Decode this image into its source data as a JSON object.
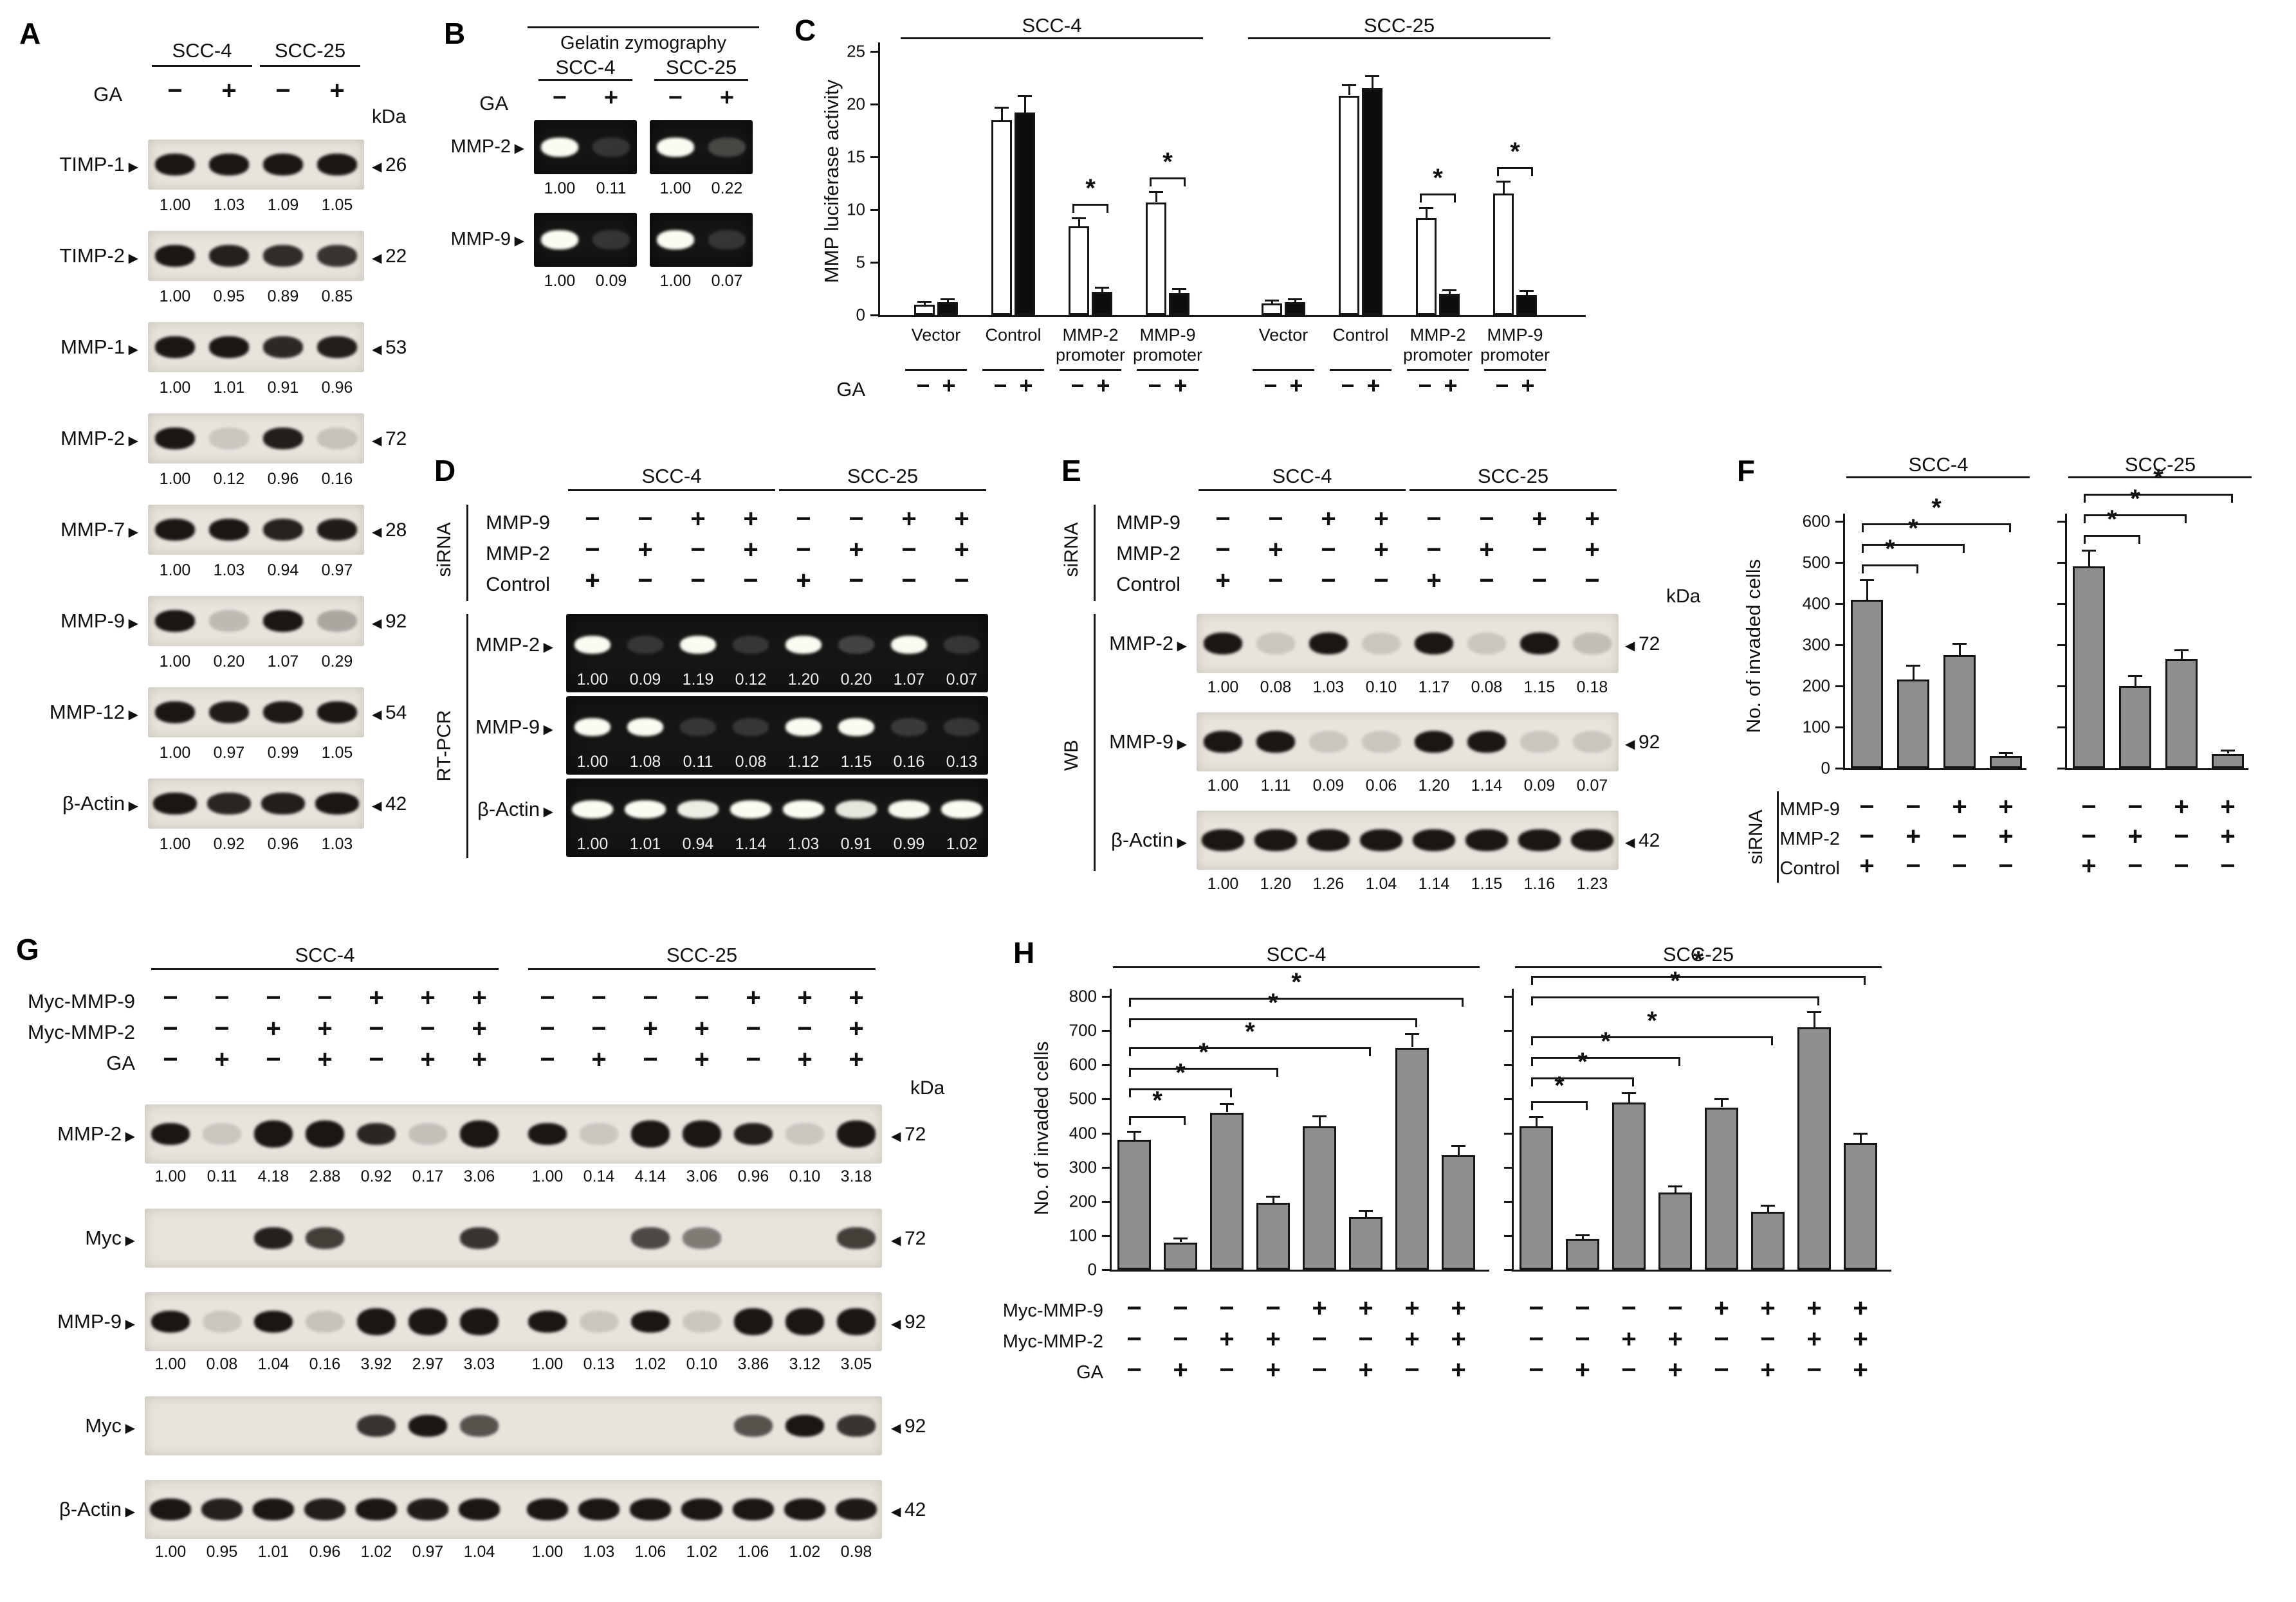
{
  "panel_A": {
    "letter": "A",
    "cell_lines": [
      "SCC-4",
      "SCC-25"
    ],
    "ga_label": "GA",
    "ga_signs": [
      "−",
      "+",
      "−",
      "+"
    ],
    "kda_label": "kDa",
    "rows": [
      {
        "protein": "TIMP-1",
        "kda": "26",
        "values": [
          "1.00",
          "1.03",
          "1.09",
          "1.05"
        ]
      },
      {
        "protein": "TIMP-2",
        "kda": "22",
        "values": [
          "1.00",
          "0.95",
          "0.89",
          "0.85"
        ]
      },
      {
        "protein": "MMP-1",
        "kda": "53",
        "values": [
          "1.00",
          "1.01",
          "0.91",
          "0.96"
        ]
      },
      {
        "protein": "MMP-2",
        "kda": "72",
        "values": [
          "1.00",
          "0.12",
          "0.96",
          "0.16"
        ]
      },
      {
        "protein": "MMP-7",
        "kda": "28",
        "values": [
          "1.00",
          "1.03",
          "0.94",
          "0.97"
        ]
      },
      {
        "protein": "MMP-9",
        "kda": "92",
        "values": [
          "1.00",
          "0.20",
          "1.07",
          "0.29"
        ]
      },
      {
        "protein": "MMP-12",
        "kda": "54",
        "values": [
          "1.00",
          "0.97",
          "0.99",
          "1.05"
        ]
      },
      {
        "protein": "β-Actin",
        "kda": "42",
        "values": [
          "1.00",
          "0.92",
          "0.96",
          "1.03"
        ]
      }
    ]
  },
  "panel_B": {
    "letter": "B",
    "title": "Gelatin zymography",
    "cell_lines": [
      "SCC-4",
      "SCC-25"
    ],
    "ga_label": "GA",
    "ga_signs": [
      "−",
      "+",
      "−",
      "+"
    ],
    "rows": [
      {
        "protein": "MMP-2",
        "values": [
          "1.00",
          "0.11",
          "1.00",
          "0.22"
        ]
      },
      {
        "protein": "MMP-9",
        "values": [
          "1.00",
          "0.09",
          "1.00",
          "0.07"
        ]
      }
    ]
  },
  "panel_C": {
    "letter": "C"
  },
  "panel_D": {
    "letter": "D",
    "sirna_label": "siRNA",
    "method_label": "RT-PCR",
    "cell_lines": [
      "SCC-4",
      "SCC-25"
    ],
    "sign_rows": [
      {
        "label": "MMP-9",
        "signs": [
          "−",
          "−",
          "+",
          "+",
          "−",
          "−",
          "+",
          "+"
        ]
      },
      {
        "label": "MMP-2",
        "signs": [
          "−",
          "+",
          "−",
          "+",
          "−",
          "+",
          "−",
          "+"
        ]
      },
      {
        "label": "Control",
        "signs": [
          "+",
          "−",
          "−",
          "−",
          "+",
          "−",
          "−",
          "−"
        ]
      }
    ],
    "rows": [
      {
        "protein": "MMP-2",
        "values": [
          "1.00",
          "0.09",
          "1.19",
          "0.12",
          "1.20",
          "0.20",
          "1.07",
          "0.07"
        ]
      },
      {
        "protein": "MMP-9",
        "values": [
          "1.00",
          "1.08",
          "0.11",
          "0.08",
          "1.12",
          "1.15",
          "0.16",
          "0.13"
        ]
      },
      {
        "protein": "β-Actin",
        "values": [
          "1.00",
          "1.01",
          "0.94",
          "1.14",
          "1.03",
          "0.91",
          "0.99",
          "1.02"
        ]
      }
    ]
  },
  "panel_E": {
    "letter": "E",
    "sirna_label": "siRNA",
    "method_label": "WB",
    "kda_label": "kDa",
    "cell_lines": [
      "SCC-4",
      "SCC-25"
    ],
    "sign_rows": [
      {
        "label": "MMP-9",
        "signs": [
          "−",
          "−",
          "+",
          "+",
          "−",
          "−",
          "+",
          "+"
        ]
      },
      {
        "label": "MMP-2",
        "signs": [
          "−",
          "+",
          "−",
          "+",
          "−",
          "+",
          "−",
          "+"
        ]
      },
      {
        "label": "Control",
        "signs": [
          "+",
          "−",
          "−",
          "−",
          "+",
          "−",
          "−",
          "−"
        ]
      }
    ],
    "rows": [
      {
        "protein": "MMP-2",
        "kda": "72",
        "values": [
          "1.00",
          "0.08",
          "1.03",
          "0.10",
          "1.17",
          "0.08",
          "1.15",
          "0.18"
        ]
      },
      {
        "protein": "MMP-9",
        "kda": "92",
        "values": [
          "1.00",
          "1.11",
          "0.09",
          "0.06",
          "1.20",
          "1.14",
          "0.09",
          "0.07"
        ]
      },
      {
        "protein": "β-Actin",
        "kda": "42",
        "values": [
          "1.00",
          "1.20",
          "1.26",
          "1.04",
          "1.14",
          "1.15",
          "1.16",
          "1.23"
        ]
      }
    ]
  },
  "panel_F": {
    "letter": "F"
  },
  "panel_G": {
    "letter": "G",
    "kda_label": "kDa",
    "cell_lines": [
      "SCC-4",
      "SCC-25"
    ],
    "sign_rows": [
      {
        "label": "Myc-MMP-9",
        "signs": [
          "−",
          "−",
          "−",
          "−",
          "+",
          "+",
          "+",
          "−",
          "−",
          "−",
          "−",
          "+",
          "+",
          "+"
        ]
      },
      {
        "label": "Myc-MMP-2",
        "signs": [
          "−",
          "−",
          "+",
          "+",
          "−",
          "−",
          "+",
          "−",
          "−",
          "+",
          "+",
          "−",
          "−",
          "+"
        ]
      },
      {
        "label": "GA",
        "signs": [
          "−",
          "+",
          "−",
          "+",
          "−",
          "+",
          "+",
          "−",
          "+",
          "−",
          "+",
          "−",
          "+",
          "+"
        ]
      }
    ],
    "rows": [
      {
        "protein": "MMP-2",
        "kda": "72",
        "values": [
          "1.00",
          "0.11",
          "4.18",
          "2.88",
          "0.92",
          "0.17",
          "3.06",
          "1.00",
          "0.14",
          "4.14",
          "3.06",
          "0.96",
          "0.10",
          "3.18"
        ]
      },
      {
        "protein": "Myc",
        "kda": "72",
        "band_intensities": [
          0,
          0,
          0.95,
          0.8,
          0,
          0,
          0.85,
          0,
          0,
          0.75,
          0.5,
          0,
          0,
          0.8
        ]
      },
      {
        "protein": "MMP-9",
        "kda": "92",
        "values": [
          "1.00",
          "0.08",
          "1.04",
          "0.16",
          "3.92",
          "2.97",
          "3.03",
          "1.00",
          "0.13",
          "1.02",
          "0.10",
          "3.86",
          "3.12",
          "3.05"
        ]
      },
      {
        "protein": "Myc",
        "kda": "92",
        "band_intensities": [
          0,
          0,
          0,
          0,
          0.85,
          1,
          0.7,
          0,
          0,
          0,
          0,
          0.7,
          1,
          0.85
        ]
      },
      {
        "protein": "β-Actin",
        "kda": "42",
        "values": [
          "1.00",
          "0.95",
          "1.01",
          "0.96",
          "1.02",
          "0.97",
          "1.04",
          "1.00",
          "1.03",
          "1.06",
          "1.02",
          "1.06",
          "1.02",
          "0.98"
        ]
      }
    ]
  },
  "panel_H": {
    "letter": "H"
  },
  "chart_data": [
    {
      "id": "C",
      "type": "bar",
      "ylabel": "MMP luciferase activity",
      "ylim": [
        0,
        25
      ],
      "yticks": [
        0,
        5,
        10,
        15,
        20,
        25
      ],
      "ga_label": "GA",
      "ga_signs": [
        "−",
        "+"
      ],
      "groups": [
        {
          "name": "SCC-4",
          "categories": [
            "Vector",
            "Control",
            "MMP-2\npromoter",
            "MMP-9\npromoter"
          ],
          "series": [
            {
              "name": "GA−",
              "fill": "#ffffff",
              "values": [
                1.0,
                18.5,
                8.4,
                10.7
              ],
              "errors": [
                0.3,
                1.2,
                0.8,
                1.0
              ]
            },
            {
              "name": "GA+",
              "fill": "#0d0d0d",
              "values": [
                1.2,
                19.2,
                2.2,
                2.1
              ],
              "errors": [
                0.3,
                1.6,
                0.4,
                0.4
              ]
            }
          ],
          "significant_categories": [
            2,
            3
          ]
        },
        {
          "name": "SCC-25",
          "categories": [
            "Vector",
            "Control",
            "MMP-2\npromoter",
            "MMP-9\npromoter"
          ],
          "series": [
            {
              "name": "GA−",
              "fill": "#ffffff",
              "values": [
                1.1,
                20.8,
                9.2,
                11.5
              ],
              "errors": [
                0.3,
                1.0,
                1.0,
                1.2
              ]
            },
            {
              "name": "GA+",
              "fill": "#0d0d0d",
              "values": [
                1.2,
                21.5,
                2.0,
                1.9
              ],
              "errors": [
                0.3,
                1.2,
                0.4,
                0.4
              ]
            }
          ],
          "significant_categories": [
            2,
            3
          ]
        }
      ]
    },
    {
      "id": "F",
      "type": "bar",
      "ylabel": "No. of invaded cells",
      "ylim": [
        0,
        600
      ],
      "yticks": [
        0,
        100,
        200,
        300,
        400,
        500,
        600
      ],
      "bar_fill": "#8f8f8f",
      "sirna_label": "siRNA",
      "groups": [
        {
          "name": "SCC-4",
          "values": [
            410,
            215,
            275,
            30
          ],
          "errors": [
            48,
            35,
            28,
            8
          ],
          "brackets": [
            [
              0,
              1
            ],
            [
              0,
              2
            ],
            [
              0,
              3
            ]
          ]
        },
        {
          "name": "SCC-25",
          "values": [
            490,
            200,
            265,
            35
          ],
          "errors": [
            40,
            25,
            22,
            8
          ],
          "brackets": [
            [
              0,
              1
            ],
            [
              0,
              2
            ],
            [
              0,
              3
            ]
          ]
        }
      ],
      "sign_rows": [
        {
          "label": "MMP-9",
          "signs": [
            "−",
            "−",
            "+",
            "+"
          ]
        },
        {
          "label": "MMP-2",
          "signs": [
            "−",
            "+",
            "−",
            "+"
          ]
        },
        {
          "label": "Control",
          "signs": [
            "+",
            "−",
            "−",
            "−"
          ]
        }
      ]
    },
    {
      "id": "H",
      "type": "bar",
      "ylabel": "No. of invaded cells",
      "ylim": [
        0,
        800
      ],
      "yticks": [
        0,
        100,
        200,
        300,
        400,
        500,
        600,
        700,
        800
      ],
      "bar_fill": "#8f8f8f",
      "groups": [
        {
          "name": "SCC-4",
          "values": [
            380,
            80,
            460,
            195,
            420,
            155,
            650,
            335
          ],
          "errors": [
            25,
            12,
            25,
            20,
            30,
            18,
            40,
            28
          ],
          "brackets": [
            [
              0,
              1
            ],
            [
              0,
              2
            ],
            [
              0,
              3
            ],
            [
              0,
              5
            ],
            [
              0,
              6
            ],
            [
              0,
              7
            ]
          ]
        },
        {
          "name": "SCC-25",
          "values": [
            420,
            90,
            490,
            225,
            475,
            170,
            710,
            370
          ],
          "errors": [
            28,
            12,
            28,
            20,
            25,
            18,
            45,
            30
          ],
          "brackets": [
            [
              0,
              1
            ],
            [
              0,
              2
            ],
            [
              0,
              3
            ],
            [
              0,
              5
            ],
            [
              0,
              6
            ],
            [
              0,
              7
            ]
          ]
        }
      ],
      "sign_rows": [
        {
          "label": "Myc-MMP-9",
          "signs": [
            "−",
            "−",
            "−",
            "−",
            "+",
            "+",
            "+",
            "+"
          ]
        },
        {
          "label": "Myc-MMP-2",
          "signs": [
            "−",
            "−",
            "+",
            "+",
            "−",
            "−",
            "+",
            "+"
          ]
        },
        {
          "label": "GA",
          "signs": [
            "−",
            "+",
            "−",
            "+",
            "−",
            "+",
            "−",
            "+"
          ]
        }
      ]
    }
  ]
}
